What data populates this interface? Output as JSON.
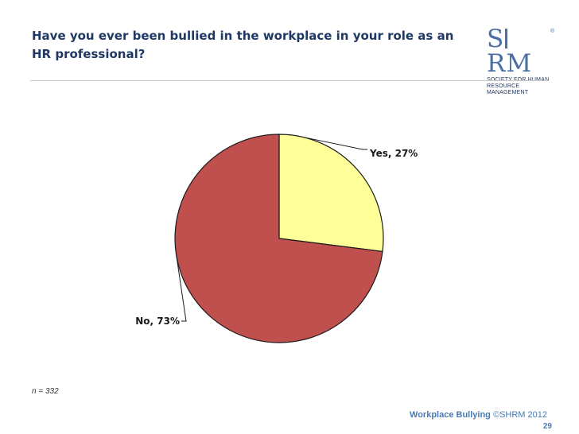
{
  "slide": {
    "title": "Have you ever been bullied in the workplace in your role as an HR professional?",
    "sample_note": "n = 332",
    "footer_title": "Workplace Bullying",
    "footer_copyright": "©SHRM 2012",
    "page_number": "29"
  },
  "logo": {
    "mark_left": "S",
    "mark_right": "RM",
    "reg_symbol": "®",
    "line1": "SOCIETY FOR HUMAN",
    "line2": "RESOURCE MANAGEMENT",
    "color": "#4a6fa5"
  },
  "chart_data": {
    "type": "pie",
    "title": "",
    "slices": [
      {
        "label": "Yes, 27%",
        "category": "Yes",
        "value": 27,
        "color": "#ffff99"
      },
      {
        "label": "No, 73%",
        "category": "No",
        "value": 73,
        "color": "#c0504d"
      }
    ],
    "start_angle_deg": 0,
    "direction": "clockwise",
    "legend": "none"
  }
}
